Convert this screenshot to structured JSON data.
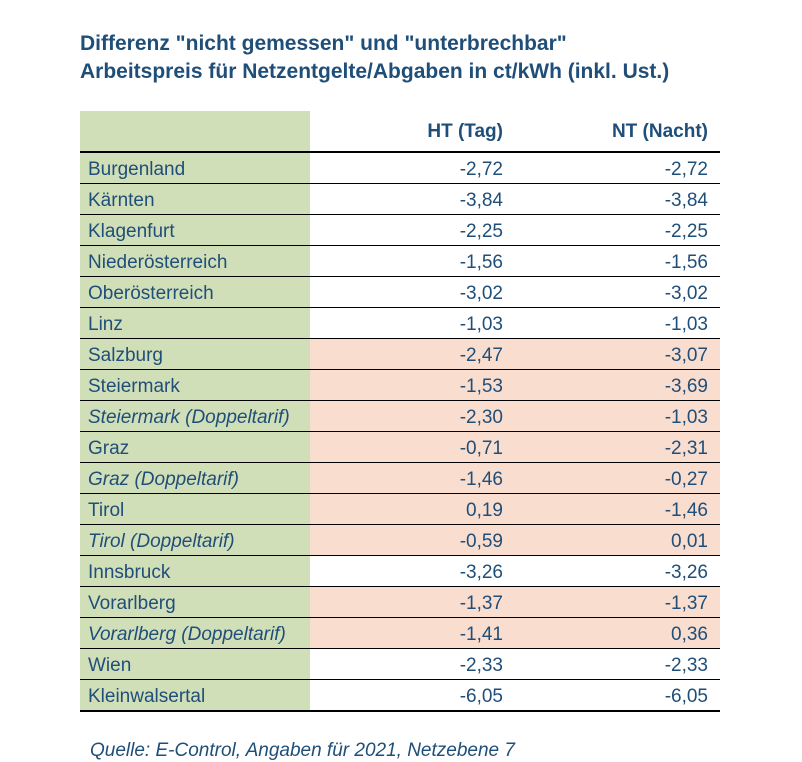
{
  "title_line1": "Differenz \"nicht gemessen\" und \"unterbrechbar\"",
  "title_line2": "Arbeitspreis für Netzentgelte/Abgaben in ct/kWh (inkl. Ust.)",
  "source": "Quelle: E-Control, Angaben für 2021, Netzebene 7",
  "colors": {
    "text": "#1f4e79",
    "label_bg": "#d1dfb8",
    "highlight_bg": "#f9ddce",
    "border": "#000000"
  },
  "table": {
    "columns": [
      "",
      "HT (Tag)",
      "NT (Nacht)"
    ],
    "rows": [
      {
        "label": "Burgenland",
        "italic": false,
        "ht": "-2,72",
        "nt": "-2,72",
        "ht_hl": false,
        "nt_hl": false
      },
      {
        "label": "Kärnten",
        "italic": false,
        "ht": "-3,84",
        "nt": "-3,84",
        "ht_hl": false,
        "nt_hl": false
      },
      {
        "label": "Klagenfurt",
        "italic": false,
        "ht": "-2,25",
        "nt": "-2,25",
        "ht_hl": false,
        "nt_hl": false
      },
      {
        "label": "Niederösterreich",
        "italic": false,
        "ht": "-1,56",
        "nt": "-1,56",
        "ht_hl": false,
        "nt_hl": false
      },
      {
        "label": "Oberösterreich",
        "italic": false,
        "ht": "-3,02",
        "nt": "-3,02",
        "ht_hl": false,
        "nt_hl": false
      },
      {
        "label": "Linz",
        "italic": false,
        "ht": "-1,03",
        "nt": "-1,03",
        "ht_hl": false,
        "nt_hl": false
      },
      {
        "label": "Salzburg",
        "italic": false,
        "ht": "-2,47",
        "nt": "-3,07",
        "ht_hl": true,
        "nt_hl": true
      },
      {
        "label": "Steiermark",
        "italic": false,
        "ht": "-1,53",
        "nt": "-3,69",
        "ht_hl": true,
        "nt_hl": true
      },
      {
        "label": "Steiermark (Doppeltarif)",
        "italic": true,
        "ht": "-2,30",
        "nt": "-1,03",
        "ht_hl": true,
        "nt_hl": true
      },
      {
        "label": "Graz",
        "italic": false,
        "ht": "-0,71",
        "nt": "-2,31",
        "ht_hl": true,
        "nt_hl": true
      },
      {
        "label": "Graz (Doppeltarif)",
        "italic": true,
        "ht": "-1,46",
        "nt": "-0,27",
        "ht_hl": true,
        "nt_hl": true
      },
      {
        "label": "Tirol",
        "italic": false,
        "ht": "0,19",
        "nt": "-1,46",
        "ht_hl": true,
        "nt_hl": true
      },
      {
        "label": "Tirol (Doppeltarif)",
        "italic": true,
        "ht": "-0,59",
        "nt": "0,01",
        "ht_hl": true,
        "nt_hl": true
      },
      {
        "label": "Innsbruck",
        "italic": false,
        "ht": "-3,26",
        "nt": "-3,26",
        "ht_hl": false,
        "nt_hl": false
      },
      {
        "label": "Vorarlberg",
        "italic": false,
        "ht": "-1,37",
        "nt": "-1,37",
        "ht_hl": true,
        "nt_hl": true
      },
      {
        "label": "Vorarlberg (Doppeltarif)",
        "italic": true,
        "ht": "-1,41",
        "nt": "0,36",
        "ht_hl": true,
        "nt_hl": true
      },
      {
        "label": "Wien",
        "italic": false,
        "ht": "-2,33",
        "nt": "-2,33",
        "ht_hl": false,
        "nt_hl": false
      },
      {
        "label": "Kleinwalsertal",
        "italic": false,
        "ht": "-6,05",
        "nt": "-6,05",
        "ht_hl": false,
        "nt_hl": false
      }
    ]
  }
}
